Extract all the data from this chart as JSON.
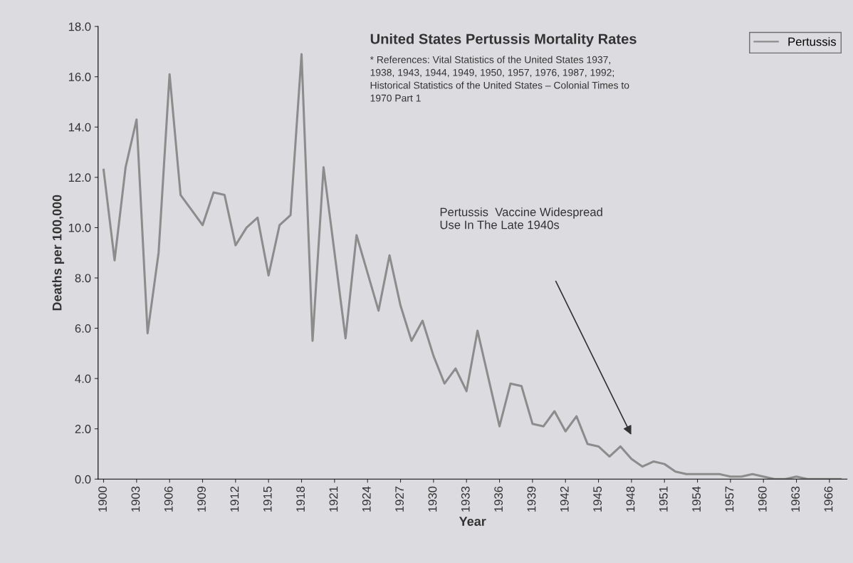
{
  "chart_data": {
    "type": "line",
    "title": "United States Pertussis Mortality Rates",
    "xlabel": "Year",
    "ylabel": "Deaths per 100,000",
    "x": [
      1900,
      1901,
      1902,
      1903,
      1904,
      1905,
      1906,
      1907,
      1908,
      1909,
      1910,
      1911,
      1912,
      1913,
      1914,
      1915,
      1916,
      1917,
      1918,
      1919,
      1920,
      1921,
      1922,
      1923,
      1924,
      1925,
      1926,
      1927,
      1928,
      1929,
      1930,
      1931,
      1932,
      1933,
      1934,
      1935,
      1936,
      1937,
      1938,
      1939,
      1940,
      1941,
      1942,
      1943,
      1944,
      1945,
      1946,
      1947,
      1948,
      1949,
      1950,
      1951,
      1952,
      1953,
      1954,
      1955,
      1956,
      1957,
      1958,
      1959,
      1960,
      1961,
      1962,
      1963,
      1964,
      1965,
      1966,
      1967
    ],
    "series": [
      {
        "name": "Pertussis",
        "color": "#8c8c8c",
        "values": [
          12.3,
          8.7,
          12.4,
          14.3,
          5.8,
          9.0,
          16.1,
          11.3,
          10.7,
          10.1,
          11.4,
          11.3,
          9.3,
          10.0,
          10.4,
          8.1,
          10.1,
          10.5,
          16.9,
          5.5,
          12.4,
          9.0,
          5.6,
          9.7,
          8.2,
          6.7,
          8.9,
          6.9,
          5.5,
          6.3,
          4.9,
          3.8,
          4.4,
          3.5,
          5.9,
          4.0,
          2.1,
          3.8,
          3.7,
          2.2,
          2.1,
          2.7,
          1.9,
          2.5,
          1.4,
          1.3,
          0.9,
          1.3,
          0.8,
          0.5,
          0.7,
          0.6,
          0.3,
          0.2,
          0.2,
          0.2,
          0.2,
          0.1,
          0.1,
          0.2,
          0.1,
          0.0,
          0.0,
          0.1,
          0.0,
          0.0,
          0.0,
          0.0
        ]
      }
    ],
    "xlim": [
      1899.5,
      1967.6
    ],
    "xticks": [
      1900,
      1903,
      1906,
      1909,
      1912,
      1915,
      1918,
      1921,
      1924,
      1927,
      1930,
      1933,
      1936,
      1939,
      1942,
      1945,
      1948,
      1951,
      1954,
      1957,
      1960,
      1963,
      1966
    ],
    "ylim": [
      0,
      18
    ],
    "yticks": [
      {
        "value": 0,
        "label": "0.0"
      },
      {
        "value": 2,
        "label": "2.0"
      },
      {
        "value": 4,
        "label": "4.0"
      },
      {
        "value": 6,
        "label": "6.0"
      },
      {
        "value": 8,
        "label": "8.0"
      },
      {
        "value": 10,
        "label": "10.0"
      },
      {
        "value": 12,
        "label": "12.0"
      },
      {
        "value": 14,
        "label": "14.0"
      },
      {
        "value": 16,
        "label": "16.0"
      },
      {
        "value": 18,
        "label": "18.0"
      }
    ],
    "grid": false,
    "legend": "top right",
    "marker": "none",
    "line_style": "solid",
    "annotations": [
      "* References: Vital Statistics of the United States 1937,\n1938, 1943, 1944, 1949, 1950, 1957, 1976, 1987, 1992;\nHistorical Statistics of the United States – Colonial Times to\n1970 Part 1",
      "Pertussis  Vaccine Widespread\nUse In The Late 1940s"
    ]
  }
}
